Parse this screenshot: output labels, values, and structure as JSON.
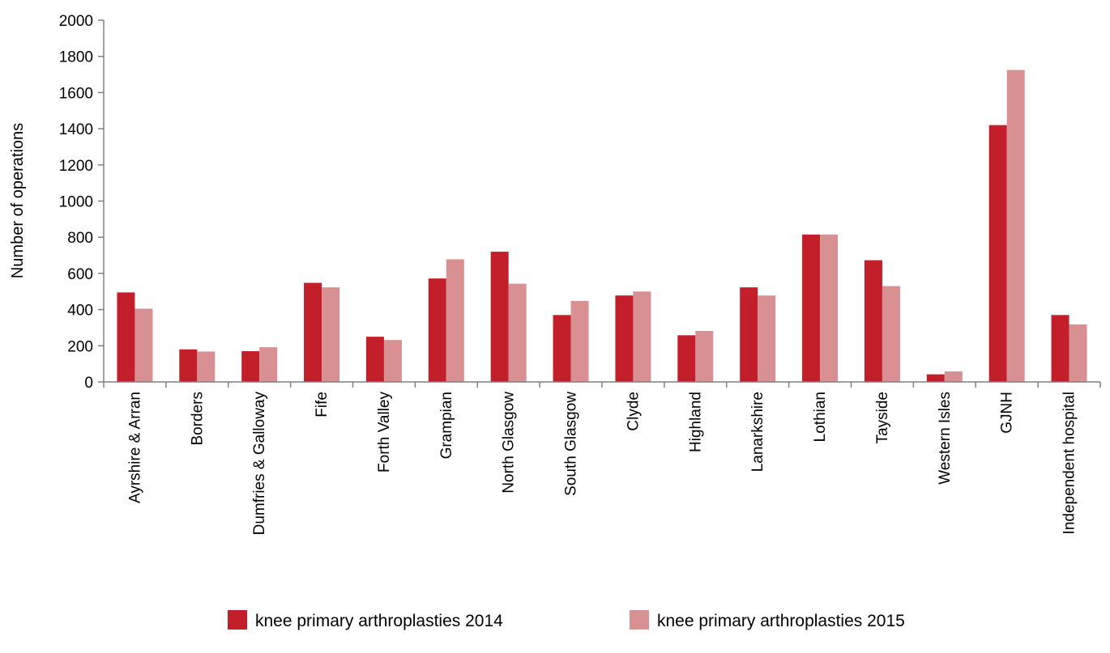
{
  "chart_data": {
    "type": "bar",
    "title": "",
    "xlabel": "",
    "ylabel": "Number of operations",
    "ylim": [
      0,
      2000
    ],
    "yticks": [
      0,
      200,
      400,
      600,
      800,
      1000,
      1200,
      1400,
      1600,
      1800,
      2000
    ],
    "grid": false,
    "legend_position": "bottom",
    "categories": [
      "Ayrshire & Arran",
      "Borders",
      "Dumfries & Galloway",
      "Fife",
      "Forth Valley",
      "Grampian",
      "North Glasgow",
      "South Glasgow",
      "Clyde",
      "Highland",
      "Lanarkshire",
      "Lothian",
      "Tayside",
      "Western Isles",
      "GJNH",
      "Independent hospital"
    ],
    "series": [
      {
        "name": "knee primary arthroplasties 2014",
        "color": "#c21f2b",
        "values": [
          495,
          180,
          170,
          548,
          250,
          572,
          720,
          370,
          478,
          258,
          523,
          815,
          673,
          42,
          1420,
          370
        ]
      },
      {
        "name": "knee primary arthroplasties 2015",
        "color": "#d99093",
        "values": [
          405,
          168,
          192,
          523,
          232,
          678,
          543,
          448,
          500,
          282,
          478,
          815,
          530,
          58,
          1725,
          318
        ]
      }
    ]
  }
}
